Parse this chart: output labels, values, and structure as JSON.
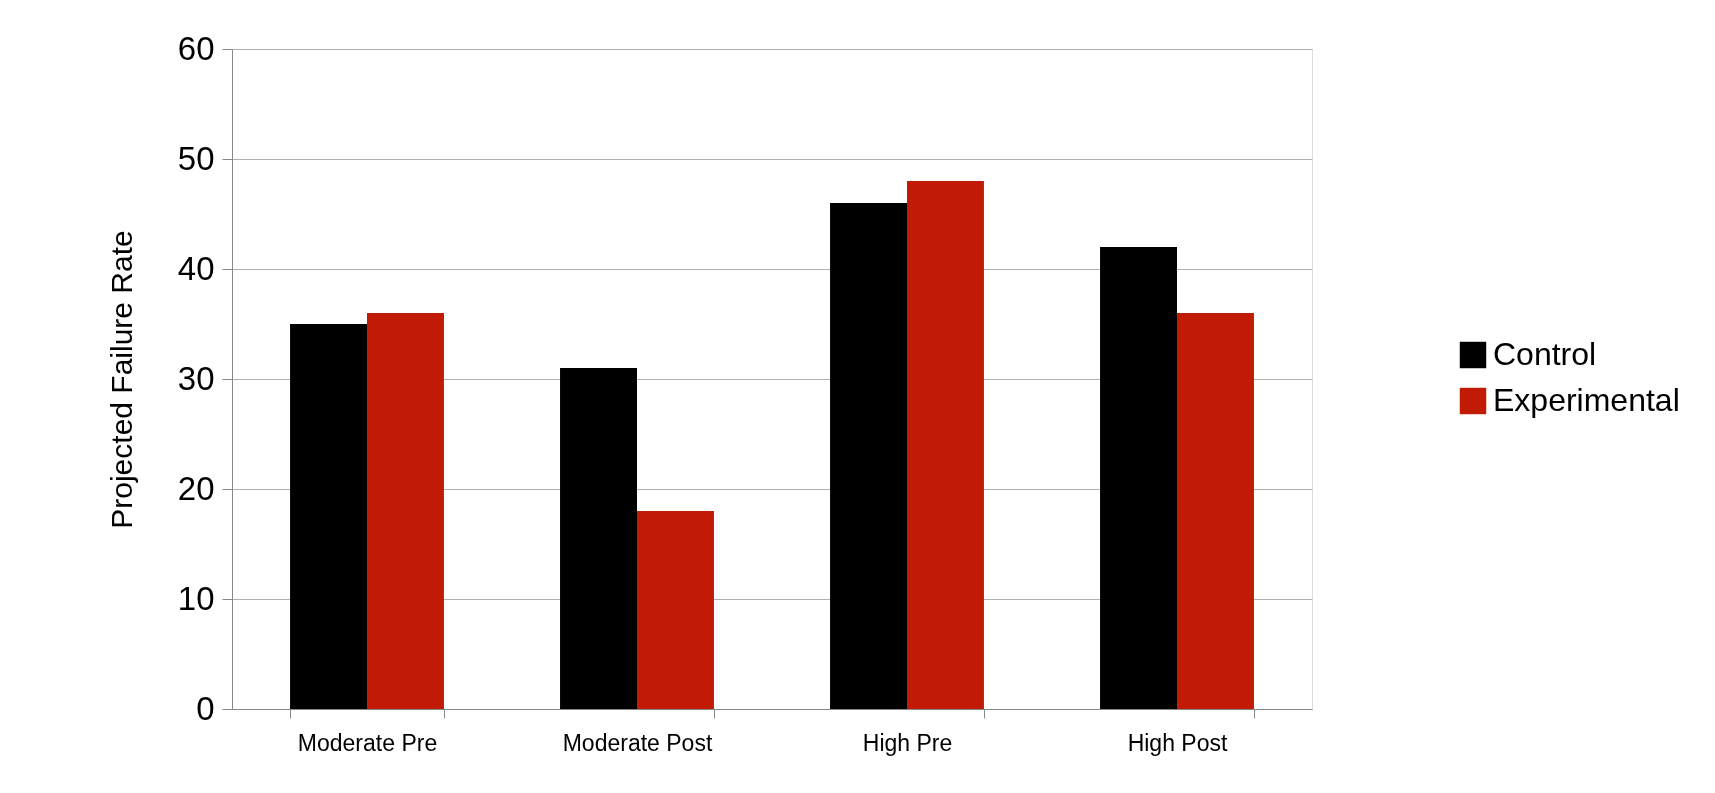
{
  "chart_data": {
    "type": "bar",
    "ylabel": "Projected Failure Rate",
    "categories": [
      "Moderate Pre",
      "Moderate Post",
      "High Pre",
      "High Post"
    ],
    "series": [
      {
        "name": "Control",
        "color": "#000000",
        "values": [
          35,
          31,
          46,
          42
        ]
      },
      {
        "name": "Experimental",
        "color": "#c11b06",
        "values": [
          36,
          18,
          48,
          36
        ]
      }
    ],
    "ylim": [
      0,
      60
    ],
    "yticks": [
      0,
      10,
      20,
      30,
      40,
      50,
      60
    ],
    "grid": "y",
    "legend": "right"
  }
}
